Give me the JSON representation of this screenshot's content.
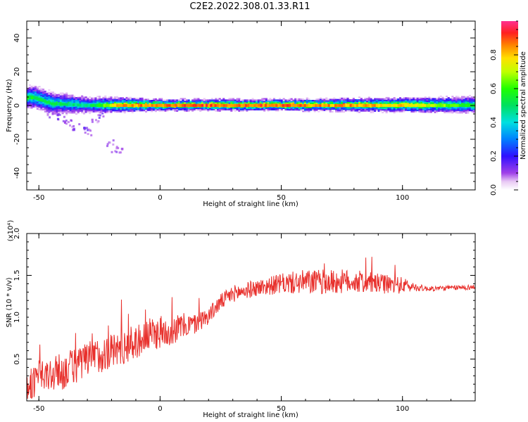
{
  "title": "C2E2.2022.308.01.33.R11",
  "chart_data": [
    {
      "type": "heatmap",
      "xlabel": "Height of straight line (km)",
      "ylabel": "Frequency (Hz)",
      "xlim": [
        -55,
        130
      ],
      "ylim": [
        -50,
        50
      ],
      "xticks": [
        -50,
        0,
        50,
        100
      ],
      "yticks": [
        -40,
        -20,
        0,
        20,
        40
      ],
      "colorbar": {
        "label": "Normalized spectral amplitude",
        "range": [
          0.0,
          1.0
        ],
        "ticks": [
          0.0,
          0.2,
          0.4,
          0.6,
          0.8
        ],
        "tick_labels": [
          "0.0",
          "0.2",
          "0.4",
          "0.6",
          "0.8"
        ]
      },
      "band": [
        {
          "x": -52,
          "center": 4.5,
          "halfwidth": 4,
          "peak": 0.6
        },
        {
          "x": -45,
          "center": 1,
          "halfwidth": 4,
          "peak": 0.55
        },
        {
          "x": -30,
          "center": 0,
          "halfwidth": 3,
          "peak": 0.5
        },
        {
          "x": -16,
          "center": 0,
          "halfwidth": 2.5,
          "peak": 0.9
        },
        {
          "x": 0,
          "center": 0,
          "halfwidth": 2,
          "peak": 0.95
        },
        {
          "x": 50,
          "center": 0,
          "halfwidth": 2,
          "peak": 0.95
        },
        {
          "x": 100,
          "center": 0,
          "halfwidth": 2.5,
          "peak": 0.85
        },
        {
          "x": 130,
          "center": 0,
          "halfwidth": 3,
          "peak": 0.6
        }
      ],
      "scatter": [
        {
          "x": -42,
          "y": -6,
          "v": 0.15
        },
        {
          "x": -40,
          "y": -8,
          "v": 0.12
        },
        {
          "x": -38,
          "y": -10,
          "v": 0.1
        },
        {
          "x": -35,
          "y": -12,
          "v": 0.12
        },
        {
          "x": -31,
          "y": -13,
          "v": 0.2
        },
        {
          "x": -30,
          "y": -15,
          "v": 0.12
        },
        {
          "x": -27,
          "y": -8,
          "v": 0.1
        },
        {
          "x": -25,
          "y": -5,
          "v": 0.15
        },
        {
          "x": -21,
          "y": -22,
          "v": 0.1
        },
        {
          "x": -19,
          "y": -25,
          "v": 0.12
        },
        {
          "x": -17,
          "y": -26,
          "v": 0.1
        },
        {
          "x": -46,
          "y": -5,
          "v": 0.12
        }
      ]
    },
    {
      "type": "line",
      "xlabel": "Height of straight line (km)",
      "ylabel": "SNR (10 * v/v)",
      "y_multiplier_label": "(x10⁴)",
      "xlim": [
        -55,
        130
      ],
      "ylim": [
        0,
        2.0
      ],
      "xticks": [
        -50,
        0,
        50,
        100
      ],
      "yticks": [
        0.5,
        1.0,
        1.5,
        2.0
      ],
      "ytick_labels": [
        "0.5",
        "1.0",
        "1.5",
        "2.0"
      ],
      "series": [
        {
          "color": "#e8302c",
          "x": [
            -55,
            -50,
            -45,
            -40,
            -35,
            -30,
            -25,
            -20,
            -15,
            -10,
            -5,
            0,
            5,
            10,
            15,
            20,
            25,
            30,
            40,
            50,
            60,
            70,
            80,
            90,
            100,
            105,
            110,
            120,
            130
          ],
          "y": [
            0.18,
            0.25,
            0.32,
            0.35,
            0.42,
            0.48,
            0.55,
            0.6,
            0.65,
            0.7,
            0.78,
            0.82,
            0.85,
            0.9,
            0.92,
            1.02,
            1.18,
            1.28,
            1.35,
            1.4,
            1.42,
            1.42,
            1.43,
            1.4,
            1.38,
            1.36,
            1.34,
            1.35,
            1.36
          ],
          "noise": [
            0.18,
            0.2,
            0.22,
            0.22,
            0.22,
            0.22,
            0.22,
            0.22,
            0.22,
            0.2,
            0.2,
            0.2,
            0.18,
            0.15,
            0.12,
            0.1,
            0.1,
            0.1,
            0.1,
            0.12,
            0.15,
            0.15,
            0.14,
            0.12,
            0.1,
            0.05,
            0.03,
            0.03,
            0.03
          ]
        }
      ]
    }
  ]
}
